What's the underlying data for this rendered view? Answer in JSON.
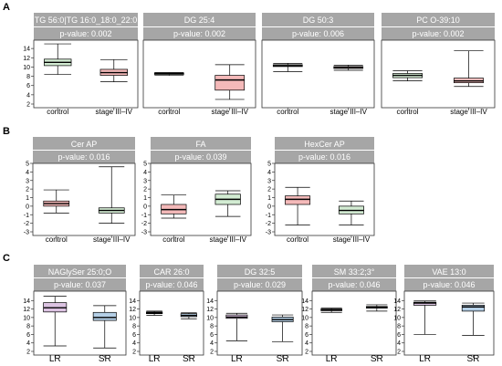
{
  "chart_data": [
    {
      "type": "boxplot",
      "row_label": "A",
      "y_ticks": [
        2,
        4,
        6,
        8,
        10,
        12,
        14
      ],
      "ylim": [
        2,
        16
      ],
      "categories": [
        "control",
        "stage III–IV"
      ],
      "panels": [
        {
          "title": "TG 56:0|TG 16:0_18:0_22:0",
          "pvalue": "p-value: 0.002",
          "boxes": [
            {
              "category": "control",
              "min": 8.4,
              "q1": 10.3,
              "median": 11.0,
              "q3": 11.7,
              "max": 15.0
            },
            {
              "category": "stage III–IV",
              "min": 6.8,
              "q1": 8.2,
              "median": 8.8,
              "q3": 9.5,
              "max": 11.6
            }
          ]
        },
        {
          "title": "DG 25:4",
          "pvalue": "p-value: 0.002",
          "boxes": [
            {
              "category": "control",
              "min": 8.2,
              "q1": 8.5,
              "median": 8.6,
              "q3": 8.7,
              "max": 8.8
            },
            {
              "category": "stage III–IV",
              "min": 3.0,
              "q1": 5.0,
              "median": 7.2,
              "q3": 8.2,
              "max": 10.5
            }
          ]
        },
        {
          "title": "DG 50:3",
          "pvalue": "p-value: 0.006",
          "boxes": [
            {
              "category": "control",
              "min": 9.0,
              "q1": 10.1,
              "median": 10.3,
              "q3": 10.5,
              "max": 10.8
            },
            {
              "category": "stage III–IV",
              "min": 9.3,
              "q1": 9.7,
              "median": 9.9,
              "q3": 10.1,
              "max": 10.4
            }
          ]
        },
        {
          "title": "PC O-39:10",
          "pvalue": "p-value: 0.002",
          "boxes": [
            {
              "category": "control",
              "min": 7.0,
              "q1": 7.7,
              "median": 8.2,
              "q3": 8.6,
              "max": 9.2
            },
            {
              "category": "stage III–IV",
              "min": 5.8,
              "q1": 6.6,
              "median": 7.0,
              "q3": 7.6,
              "max": 13.5
            }
          ]
        }
      ]
    },
    {
      "type": "boxplot",
      "row_label": "B",
      "y_ticks": [
        -3,
        -2,
        -1,
        0,
        1,
        2,
        3,
        4,
        5
      ],
      "ylim": [
        -3,
        5
      ],
      "categories": [
        "control",
        "stage III–IV"
      ],
      "panels": [
        {
          "title": "Cer AP",
          "pvalue": "p-value: 0.016",
          "boxes": [
            {
              "category": "control",
              "min": -0.8,
              "q1": 0.0,
              "median": 0.3,
              "q3": 0.6,
              "max": 1.9
            },
            {
              "category": "stage III–IV",
              "min": -2.0,
              "q1": -0.8,
              "median": -0.5,
              "q3": -0.2,
              "max": 4.6
            }
          ]
        },
        {
          "title": "FA",
          "pvalue": "p-value: 0.039",
          "boxes": [
            {
              "category": "control",
              "min": -1.4,
              "q1": -0.9,
              "median": -0.4,
              "q3": 0.2,
              "max": 1.3
            },
            {
              "category": "stage III–IV",
              "min": -1.2,
              "q1": 0.2,
              "median": 0.8,
              "q3": 1.4,
              "max": 1.8
            }
          ]
        },
        {
          "title": "HexCer AP",
          "pvalue": "p-value: 0.016",
          "boxes": [
            {
              "category": "control",
              "min": -2.2,
              "q1": 0.2,
              "median": 0.8,
              "q3": 1.2,
              "max": 2.2
            },
            {
              "category": "stage III–IV",
              "min": -2.2,
              "q1": -0.9,
              "median": -0.5,
              "q3": 0.0,
              "max": 0.6
            }
          ]
        }
      ]
    },
    {
      "type": "boxplot",
      "row_label": "C",
      "y_ticks": [
        2,
        4,
        6,
        8,
        10,
        12,
        14
      ],
      "ylim": [
        2,
        16
      ],
      "categories": [
        "LR",
        "SR"
      ],
      "panels": [
        {
          "title": "NAGlySer 25:0;O",
          "pvalue": "p-value: 0.037",
          "boxes": [
            {
              "category": "LR",
              "min": 3.3,
              "q1": 11.3,
              "median": 12.3,
              "q3": 13.5,
              "max": 15.0
            },
            {
              "category": "SR",
              "min": 2.8,
              "q1": 9.3,
              "median": 10.0,
              "q3": 11.2,
              "max": 12.8
            }
          ]
        },
        {
          "title": "CAR 26:0",
          "pvalue": "p-value: 0.046",
          "boxes": [
            {
              "category": "LR",
              "min": 10.5,
              "q1": 10.9,
              "median": 11.1,
              "q3": 11.3,
              "max": 11.5
            },
            {
              "category": "SR",
              "min": 9.7,
              "q1": 10.2,
              "median": 10.5,
              "q3": 10.9,
              "max": 11.1
            }
          ]
        },
        {
          "title": "DG 32:5",
          "pvalue": "p-value: 0.029",
          "boxes": [
            {
              "category": "LR",
              "min": 4.5,
              "q1": 9.8,
              "median": 10.1,
              "q3": 10.6,
              "max": 11.0
            },
            {
              "category": "SR",
              "min": 4.3,
              "q1": 9.0,
              "median": 9.5,
              "q3": 10.1,
              "max": 10.6
            }
          ]
        },
        {
          "title": "SM 33:2;3°",
          "pvalue": "p-value: 0.046",
          "boxes": [
            {
              "category": "LR",
              "min": 11.2,
              "q1": 11.6,
              "median": 11.8,
              "q3": 12.0,
              "max": 12.2
            },
            {
              "category": "SR",
              "min": 11.5,
              "q1": 12.2,
              "median": 12.4,
              "q3": 12.6,
              "max": 13.0
            }
          ]
        },
        {
          "title": "VAE 13:0",
          "pvalue": "p-value: 0.046",
          "boxes": [
            {
              "category": "LR",
              "min": 6.0,
              "q1": 12.9,
              "median": 13.4,
              "q3": 13.6,
              "max": 13.9
            },
            {
              "category": "SR",
              "min": 5.8,
              "q1": 11.5,
              "median": 12.5,
              "q3": 12.9,
              "max": 13.4
            }
          ]
        }
      ]
    }
  ],
  "colors": {
    "strip_bg": "#a6a6a6",
    "strip_text": "#ffffff",
    "rowA_control": "#d3ecd3",
    "rowA_stage": "#f4b9b9",
    "rowB_control": "#f4b9b9",
    "rowB_stage": "#d3ecd3",
    "rowC_LR": "#dcc3e2",
    "rowC_SR": "#b4cfe6"
  }
}
